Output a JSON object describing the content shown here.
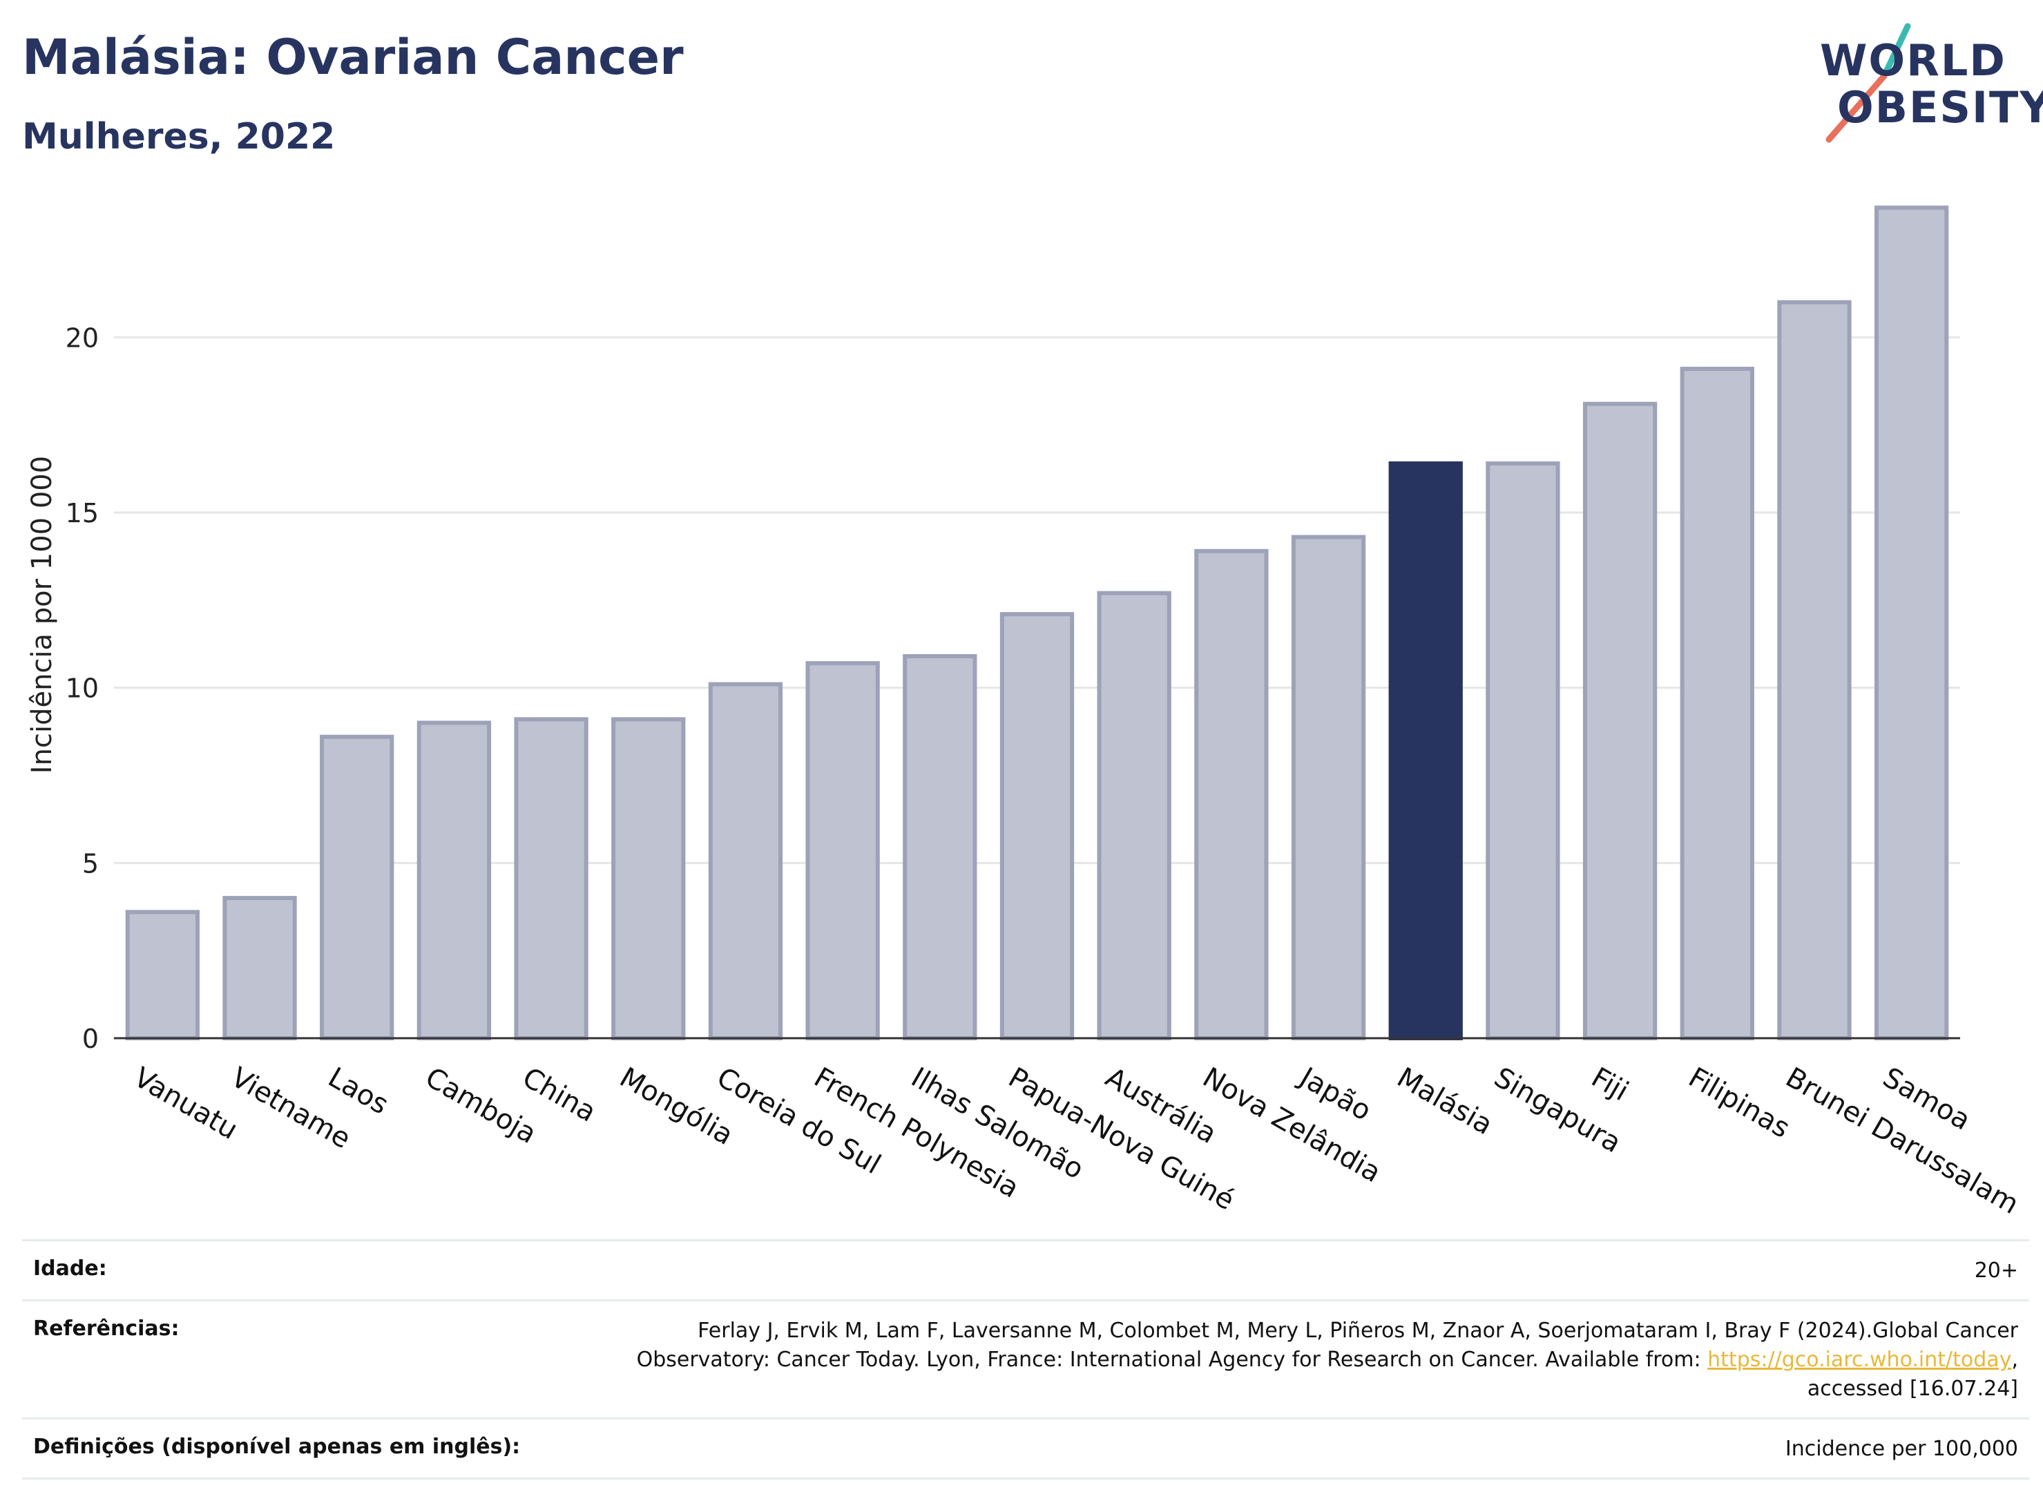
{
  "header": {
    "title": "Malásia: Ovarian Cancer",
    "subtitle": "Mulheres, 2022"
  },
  "logo": {
    "line1": "WORLD",
    "line2": "OBESITY"
  },
  "colors": {
    "highlight": "#283460",
    "bar_fill": "#bfc2d0",
    "bar_stroke": "#9da2b8",
    "grid": "#e6e6e6",
    "logo_teal": "#3bb9b1",
    "logo_coral": "#e8705d"
  },
  "chart_data": {
    "type": "bar",
    "title": "",
    "xlabel": "",
    "ylabel": "Incidência por 100 000",
    "categories": [
      "Vanuatu",
      "Vietname",
      "Laos",
      "Camboja",
      "China",
      "Mongólia",
      "Coreia do Sul",
      "French Polynesia",
      "Ilhas Salomão",
      "Papua-Nova Guiné",
      "Austrália",
      "Nova Zelândia",
      "Japão",
      "Malásia",
      "Singapura",
      "Fiji",
      "Filipinas",
      "Brunei Darussalam",
      "Samoa"
    ],
    "values": [
      3.6,
      4.0,
      8.6,
      9.0,
      9.1,
      9.1,
      10.1,
      10.7,
      10.9,
      12.1,
      12.7,
      13.9,
      14.3,
      16.4,
      16.4,
      18.1,
      19.1,
      21.0,
      23.7
    ],
    "highlight": "Malásia",
    "ylim": [
      0,
      24.5
    ],
    "yticks": [
      0,
      5,
      10,
      15,
      20
    ],
    "grid": true,
    "legend": "none"
  },
  "footer": {
    "age_label": "Idade:",
    "age_value": "20+",
    "ref_label": "Referências:",
    "ref_line1": "Ferlay J, Ervik M, Lam F, Laversanne M, Colombet M, Mery L, Piñeros M, Znaor A, Soerjomataram I, Bray F (2024).Global Cancer",
    "ref_line2_pre": "Observatory: Cancer Today. Lyon, France: International Agency for Research on Cancer. Available from: ",
    "ref_link": "https://gco.iarc.who.int/today",
    "ref_line2_post": ",",
    "ref_line3": "accessed [16.07.24]",
    "def_label": "Definições (disponível apenas em inglês):",
    "def_value": "Incidence per 100,000"
  }
}
